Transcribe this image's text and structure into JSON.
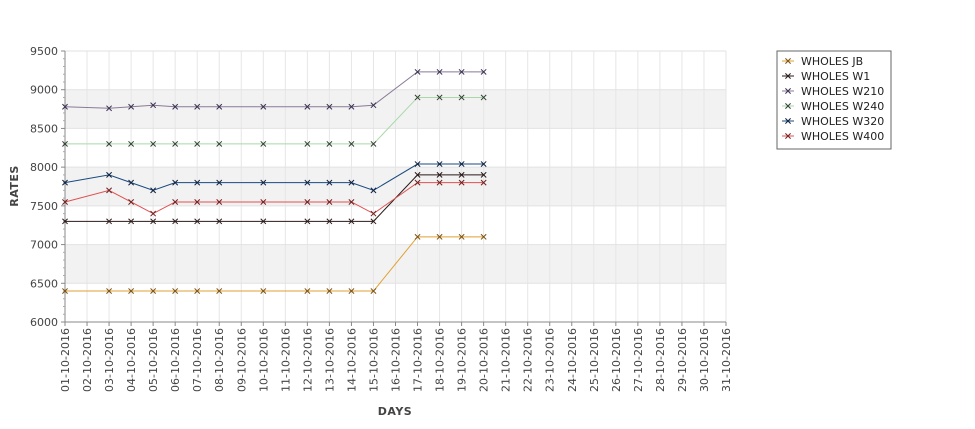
{
  "chart_data": {
    "type": "line",
    "xlabel": "DAYS",
    "ylabel": "RATES",
    "ylim": [
      6000,
      9500
    ],
    "yticks": [
      6000,
      6500,
      7000,
      7500,
      8000,
      8500,
      9000,
      9500
    ],
    "banded_background": true,
    "grid": true,
    "legend_position": "top-right",
    "x": [
      "01-10-2016",
      "02-10-2016",
      "03-10-2016",
      "04-10-2016",
      "05-10-2016",
      "06-10-2016",
      "07-10-2016",
      "08-10-2016",
      "09-10-2016",
      "10-10-2016",
      "11-10-2016",
      "12-10-2016",
      "13-10-2016",
      "14-10-2016",
      "15-10-2016",
      "16-10-2016",
      "17-10-2016",
      "18-10-2016",
      "19-10-2016",
      "20-10-2016",
      "21-10-2016",
      "22-10-2016",
      "23-10-2016",
      "24-10-2016",
      "25-10-2016",
      "26-10-2016",
      "27-10-2016",
      "28-10-2016",
      "29-10-2016",
      "30-10-2016",
      "31-10-2016"
    ],
    "series": [
      {
        "name": "WHOLES JB",
        "color": "#e0a030",
        "marker": "#7a5010",
        "points": [
          [
            "01-10-2016",
            6400
          ],
          [
            "03-10-2016",
            6400
          ],
          [
            "04-10-2016",
            6400
          ],
          [
            "05-10-2016",
            6400
          ],
          [
            "06-10-2016",
            6400
          ],
          [
            "07-10-2016",
            6400
          ],
          [
            "08-10-2016",
            6400
          ],
          [
            "10-10-2016",
            6400
          ],
          [
            "12-10-2016",
            6400
          ],
          [
            "13-10-2016",
            6400
          ],
          [
            "14-10-2016",
            6400
          ],
          [
            "15-10-2016",
            6400
          ],
          [
            "17-10-2016",
            7100
          ],
          [
            "18-10-2016",
            7100
          ],
          [
            "19-10-2016",
            7100
          ],
          [
            "20-10-2016",
            7100
          ]
        ]
      },
      {
        "name": "WHOLES W1",
        "color": "#2a1a1a",
        "marker": "#2a1a1a",
        "points": [
          [
            "01-10-2016",
            7300
          ],
          [
            "03-10-2016",
            7300
          ],
          [
            "04-10-2016",
            7300
          ],
          [
            "05-10-2016",
            7300
          ],
          [
            "06-10-2016",
            7300
          ],
          [
            "07-10-2016",
            7300
          ],
          [
            "08-10-2016",
            7300
          ],
          [
            "10-10-2016",
            7300
          ],
          [
            "12-10-2016",
            7300
          ],
          [
            "13-10-2016",
            7300
          ],
          [
            "14-10-2016",
            7300
          ],
          [
            "15-10-2016",
            7300
          ],
          [
            "17-10-2016",
            7900
          ],
          [
            "18-10-2016",
            7900
          ],
          [
            "19-10-2016",
            7900
          ],
          [
            "20-10-2016",
            7900
          ]
        ]
      },
      {
        "name": "WHOLES W210",
        "color": "#8a7a96",
        "marker": "#3a3050",
        "points": [
          [
            "01-10-2016",
            8780
          ],
          [
            "03-10-2016",
            8760
          ],
          [
            "04-10-2016",
            8780
          ],
          [
            "05-10-2016",
            8800
          ],
          [
            "06-10-2016",
            8780
          ],
          [
            "07-10-2016",
            8780
          ],
          [
            "08-10-2016",
            8780
          ],
          [
            "10-10-2016",
            8780
          ],
          [
            "12-10-2016",
            8780
          ],
          [
            "13-10-2016",
            8780
          ],
          [
            "14-10-2016",
            8780
          ],
          [
            "15-10-2016",
            8800
          ],
          [
            "17-10-2016",
            9230
          ],
          [
            "18-10-2016",
            9230
          ],
          [
            "19-10-2016",
            9230
          ],
          [
            "20-10-2016",
            9230
          ]
        ]
      },
      {
        "name": "WHOLES W240",
        "color": "#a8d8a8",
        "marker": "#304030",
        "points": [
          [
            "01-10-2016",
            8300
          ],
          [
            "03-10-2016",
            8300
          ],
          [
            "04-10-2016",
            8300
          ],
          [
            "05-10-2016",
            8300
          ],
          [
            "06-10-2016",
            8300
          ],
          [
            "07-10-2016",
            8300
          ],
          [
            "08-10-2016",
            8300
          ],
          [
            "10-10-2016",
            8300
          ],
          [
            "12-10-2016",
            8300
          ],
          [
            "13-10-2016",
            8300
          ],
          [
            "14-10-2016",
            8300
          ],
          [
            "15-10-2016",
            8300
          ],
          [
            "17-10-2016",
            8900
          ],
          [
            "18-10-2016",
            8900
          ],
          [
            "19-10-2016",
            8900
          ],
          [
            "20-10-2016",
            8900
          ]
        ]
      },
      {
        "name": "WHOLES W320",
        "color": "#1a4a80",
        "marker": "#102040",
        "points": [
          [
            "01-10-2016",
            7800
          ],
          [
            "03-10-2016",
            7900
          ],
          [
            "04-10-2016",
            7800
          ],
          [
            "05-10-2016",
            7700
          ],
          [
            "06-10-2016",
            7800
          ],
          [
            "07-10-2016",
            7800
          ],
          [
            "08-10-2016",
            7800
          ],
          [
            "10-10-2016",
            7800
          ],
          [
            "12-10-2016",
            7800
          ],
          [
            "13-10-2016",
            7800
          ],
          [
            "14-10-2016",
            7800
          ],
          [
            "15-10-2016",
            7700
          ],
          [
            "17-10-2016",
            8040
          ],
          [
            "18-10-2016",
            8040
          ],
          [
            "19-10-2016",
            8040
          ],
          [
            "20-10-2016",
            8040
          ]
        ]
      },
      {
        "name": "WHOLES W400",
        "color": "#e05050",
        "marker": "#702020",
        "points": [
          [
            "01-10-2016",
            7550
          ],
          [
            "03-10-2016",
            7700
          ],
          [
            "04-10-2016",
            7550
          ],
          [
            "05-10-2016",
            7400
          ],
          [
            "06-10-2016",
            7550
          ],
          [
            "07-10-2016",
            7550
          ],
          [
            "08-10-2016",
            7550
          ],
          [
            "10-10-2016",
            7550
          ],
          [
            "12-10-2016",
            7550
          ],
          [
            "13-10-2016",
            7550
          ],
          [
            "14-10-2016",
            7550
          ],
          [
            "15-10-2016",
            7400
          ],
          [
            "17-10-2016",
            7800
          ],
          [
            "18-10-2016",
            7800
          ],
          [
            "19-10-2016",
            7800
          ],
          [
            "20-10-2016",
            7800
          ]
        ]
      }
    ]
  }
}
